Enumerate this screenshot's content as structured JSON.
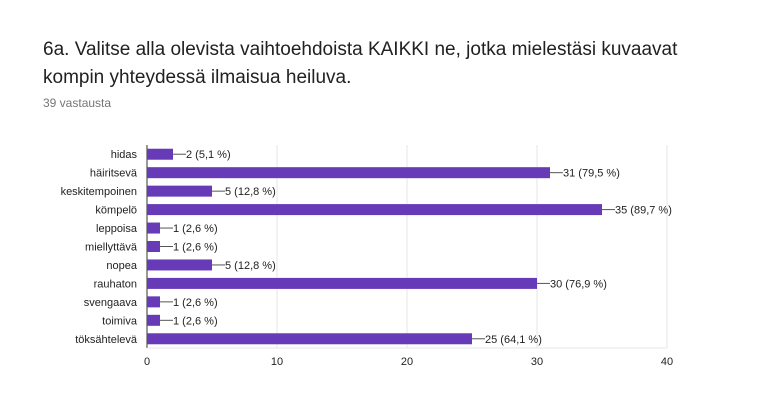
{
  "question": {
    "title": "6a. Valitse alla olevista vaihtoehdoista KAIKKI ne, jotka mielestäsi kuvaavat kompin yhteydessä ilmaisua heiluva.",
    "response_count": "39 vastausta"
  },
  "colors": {
    "bar": "#673ab7",
    "grid": "#e6e6e6",
    "axis": "#333333",
    "text": "#222222",
    "connector": "#555555"
  },
  "chart_data": {
    "type": "bar",
    "orientation": "horizontal",
    "categories": [
      "hidas",
      "häiritsevä",
      "keskitempoinen",
      "kömpelö",
      "leppoisa",
      "miellyttävä",
      "nopea",
      "rauhaton",
      "svengaava",
      "toimiva",
      "töksähtelevä"
    ],
    "values": [
      2,
      31,
      5,
      35,
      1,
      1,
      5,
      30,
      1,
      1,
      25
    ],
    "data_labels": [
      "2 (5,1 %)",
      "31 (79,5 %)",
      "5 (12,8 %)",
      "35 (89,7 %)",
      "1 (2,6 %)",
      "1 (2,6 %)",
      "5 (12,8 %)",
      "30 (76,9 %)",
      "1 (2,6 %)",
      "1 (2,6 %)",
      "25 (64,1 %)"
    ],
    "x_ticks": [
      "0",
      "10",
      "20",
      "30",
      "40"
    ],
    "xlim": [
      0,
      40
    ],
    "grid": true
  }
}
